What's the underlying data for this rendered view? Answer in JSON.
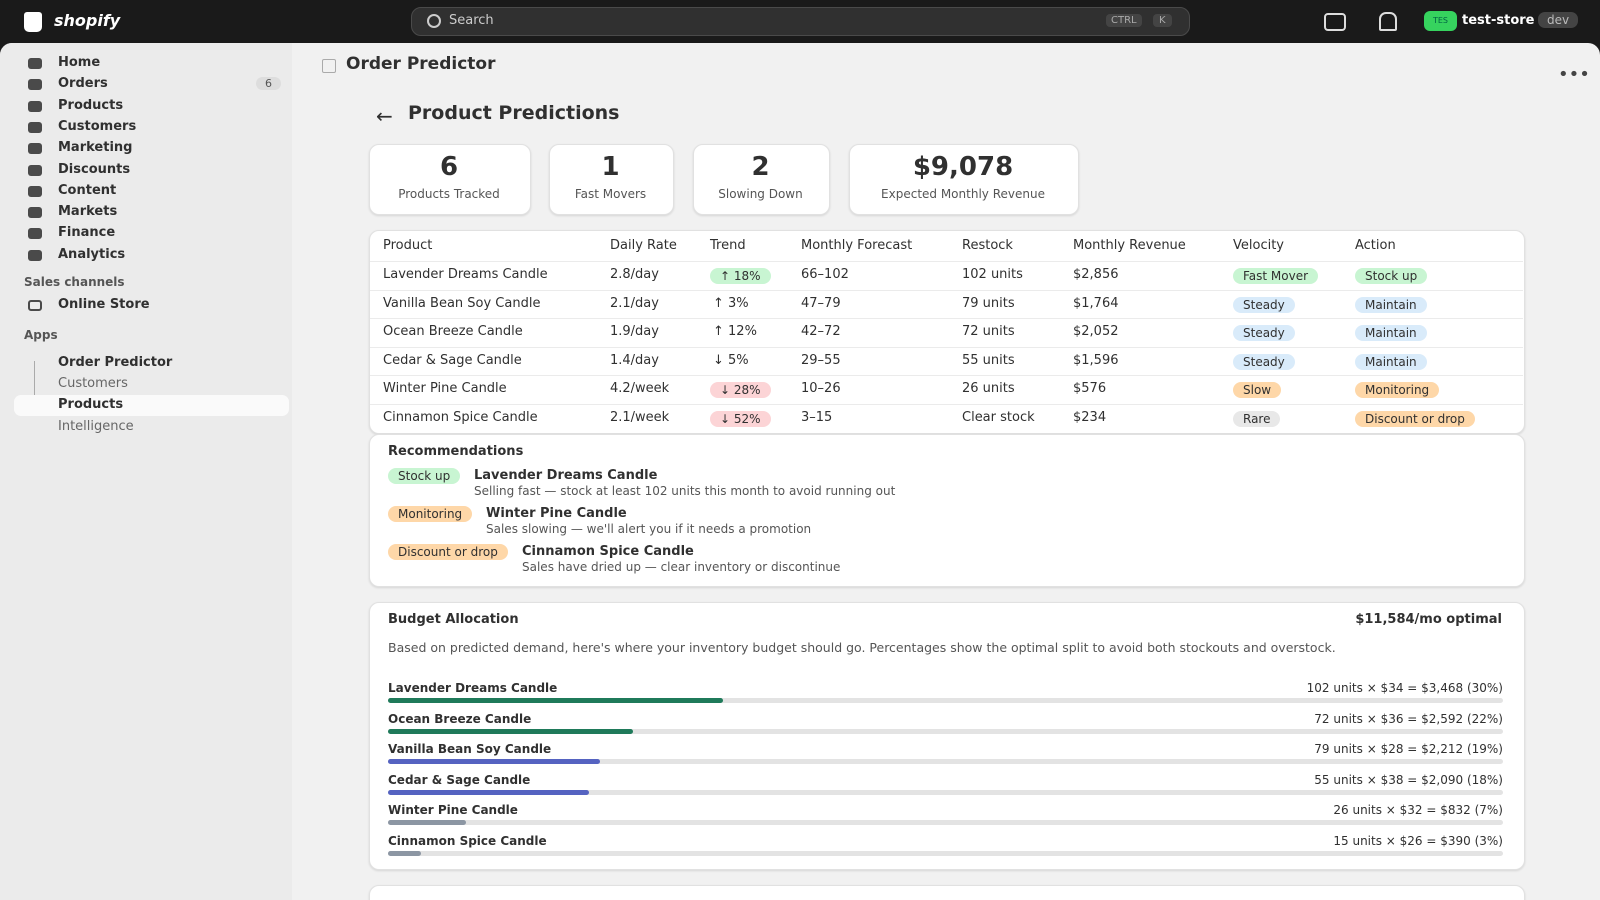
{
  "topbar": {
    "brand": "shopify",
    "search": "Search",
    "shortcut": [
      "CTRL",
      "K"
    ],
    "store_initials": "TES",
    "store": "test-store",
    "env": "dev"
  },
  "sidebar": {
    "nav": [
      {
        "label": "Home"
      },
      {
        "label": "Orders",
        "badge": "6"
      },
      {
        "label": "Products"
      },
      {
        "label": "Customers"
      },
      {
        "label": "Marketing"
      },
      {
        "label": "Discounts"
      },
      {
        "label": "Content"
      },
      {
        "label": "Markets"
      },
      {
        "label": "Finance"
      },
      {
        "label": "Analytics"
      }
    ],
    "sales_channels": "Sales channels",
    "online_store": "Online Store",
    "apps": "Apps",
    "app": "Order Predictor",
    "app_subnav": [
      "Customers",
      "Products",
      "Intelligence"
    ]
  },
  "page": {
    "app_title": "Order Predictor",
    "title": "Product Predictions",
    "stats": [
      {
        "value": "6",
        "label": "Products Tracked"
      },
      {
        "value": "1",
        "label": "Fast Movers"
      },
      {
        "value": "2",
        "label": "Slowing Down"
      },
      {
        "value": "$9,078",
        "label": "Expected Monthly Revenue"
      }
    ],
    "table": {
      "headers": [
        "Product",
        "Daily Rate",
        "Trend",
        "Monthly Forecast",
        "Restock",
        "Monthly Revenue",
        "Velocity",
        "Action"
      ],
      "rows": [
        {
          "product": "Lavender Dreams Candle",
          "daily_rate": "2.8/day",
          "trend": "↑ 18%",
          "trend_color": "#c8f5d2",
          "forecast": "66–102",
          "restock": "102 units",
          "revenue": "$2,856",
          "velocity": "Fast Mover",
          "velocity_color": "#c8f5d2",
          "action": "Stock up",
          "action_color": "#c8f5d2"
        },
        {
          "product": "Vanilla Bean Soy Candle",
          "daily_rate": "2.1/day",
          "trend": "↑ 3%",
          "trend_color": null,
          "forecast": "47–79",
          "restock": "79 units",
          "revenue": "$1,764",
          "velocity": "Steady",
          "velocity_color": "#d9ebfa",
          "action": "Maintain",
          "action_color": "#d9ebfa"
        },
        {
          "product": "Ocean Breeze Candle",
          "daily_rate": "1.9/day",
          "trend": "↑ 12%",
          "trend_color": null,
          "forecast": "42–72",
          "restock": "72 units",
          "revenue": "$2,052",
          "velocity": "Steady",
          "velocity_color": "#d9ebfa",
          "action": "Maintain",
          "action_color": "#d9ebfa"
        },
        {
          "product": "Cedar & Sage Candle",
          "daily_rate": "1.4/day",
          "trend": "↓ 5%",
          "trend_color": null,
          "forecast": "29–55",
          "restock": "55 units",
          "revenue": "$1,596",
          "velocity": "Steady",
          "velocity_color": "#d9ebfa",
          "action": "Maintain",
          "action_color": "#d9ebfa"
        },
        {
          "product": "Winter Pine Candle",
          "daily_rate": "4.2/week",
          "trend": "↓ 28%",
          "trend_color": "#fcd4d6",
          "forecast": "10–26",
          "restock": "26 units",
          "revenue": "$576",
          "velocity": "Slow",
          "velocity_color": "#fed7a8",
          "action": "Monitoring",
          "action_color": "#fed7a8"
        },
        {
          "product": "Cinnamon Spice Candle",
          "daily_rate": "2.1/week",
          "trend": "↓ 52%",
          "trend_color": "#fcd4d6",
          "forecast": "3–15",
          "restock": "Clear stock",
          "revenue": "$234",
          "velocity": "Rare",
          "velocity_color": "#e8e8e8",
          "action": "Discount or drop",
          "action_color": "#fed7a8"
        }
      ]
    },
    "recommendations": {
      "title": "Recommendations",
      "items": [
        {
          "tag": "Stock up",
          "tag_color": "#c8f5d2",
          "product": "Lavender Dreams Candle",
          "note": "Selling fast — stock at least 102 units this month to avoid running out"
        },
        {
          "tag": "Monitoring",
          "tag_color": "#fed7a8",
          "product": "Winter Pine Candle",
          "note": "Sales slowing — we'll alert you if it needs a promotion"
        },
        {
          "tag": "Discount or drop",
          "tag_color": "#fed7a8",
          "product": "Cinnamon Spice Candle",
          "note": "Sales have dried up — clear inventory or discontinue"
        }
      ]
    },
    "budget": {
      "title": "Budget Allocation",
      "total": "$11,584/mo optimal",
      "description": "Based on predicted demand, here's where your inventory budget should go. Percentages show the optimal split to avoid both stockouts and overstock.",
      "items": [
        {
          "product": "Lavender Dreams Candle",
          "detail": "102 units × $34 = $3,468 (30%)",
          "share": 30,
          "color": "#1f7a5a"
        },
        {
          "product": "Ocean Breeze Candle",
          "detail": "72 units × $36 = $2,592 (22%)",
          "share": 22,
          "color": "#1f7a5a"
        },
        {
          "product": "Vanilla Bean Soy Candle",
          "detail": "79 units × $28 = $2,212 (19%)",
          "share": 19,
          "color": "#5563c1"
        },
        {
          "product": "Cedar & Sage Candle",
          "detail": "55 units × $38 = $2,090 (18%)",
          "share": 18,
          "color": "#5563c1"
        },
        {
          "product": "Winter Pine Candle",
          "detail": "26 units × $32 = $832 (7%)",
          "share": 7,
          "color": "#8c96a3"
        },
        {
          "product": "Cinnamon Spice Candle",
          "detail": "15 units × $26 = $390 (3%)",
          "share": 3,
          "color": "#8c96a3"
        }
      ]
    }
  }
}
